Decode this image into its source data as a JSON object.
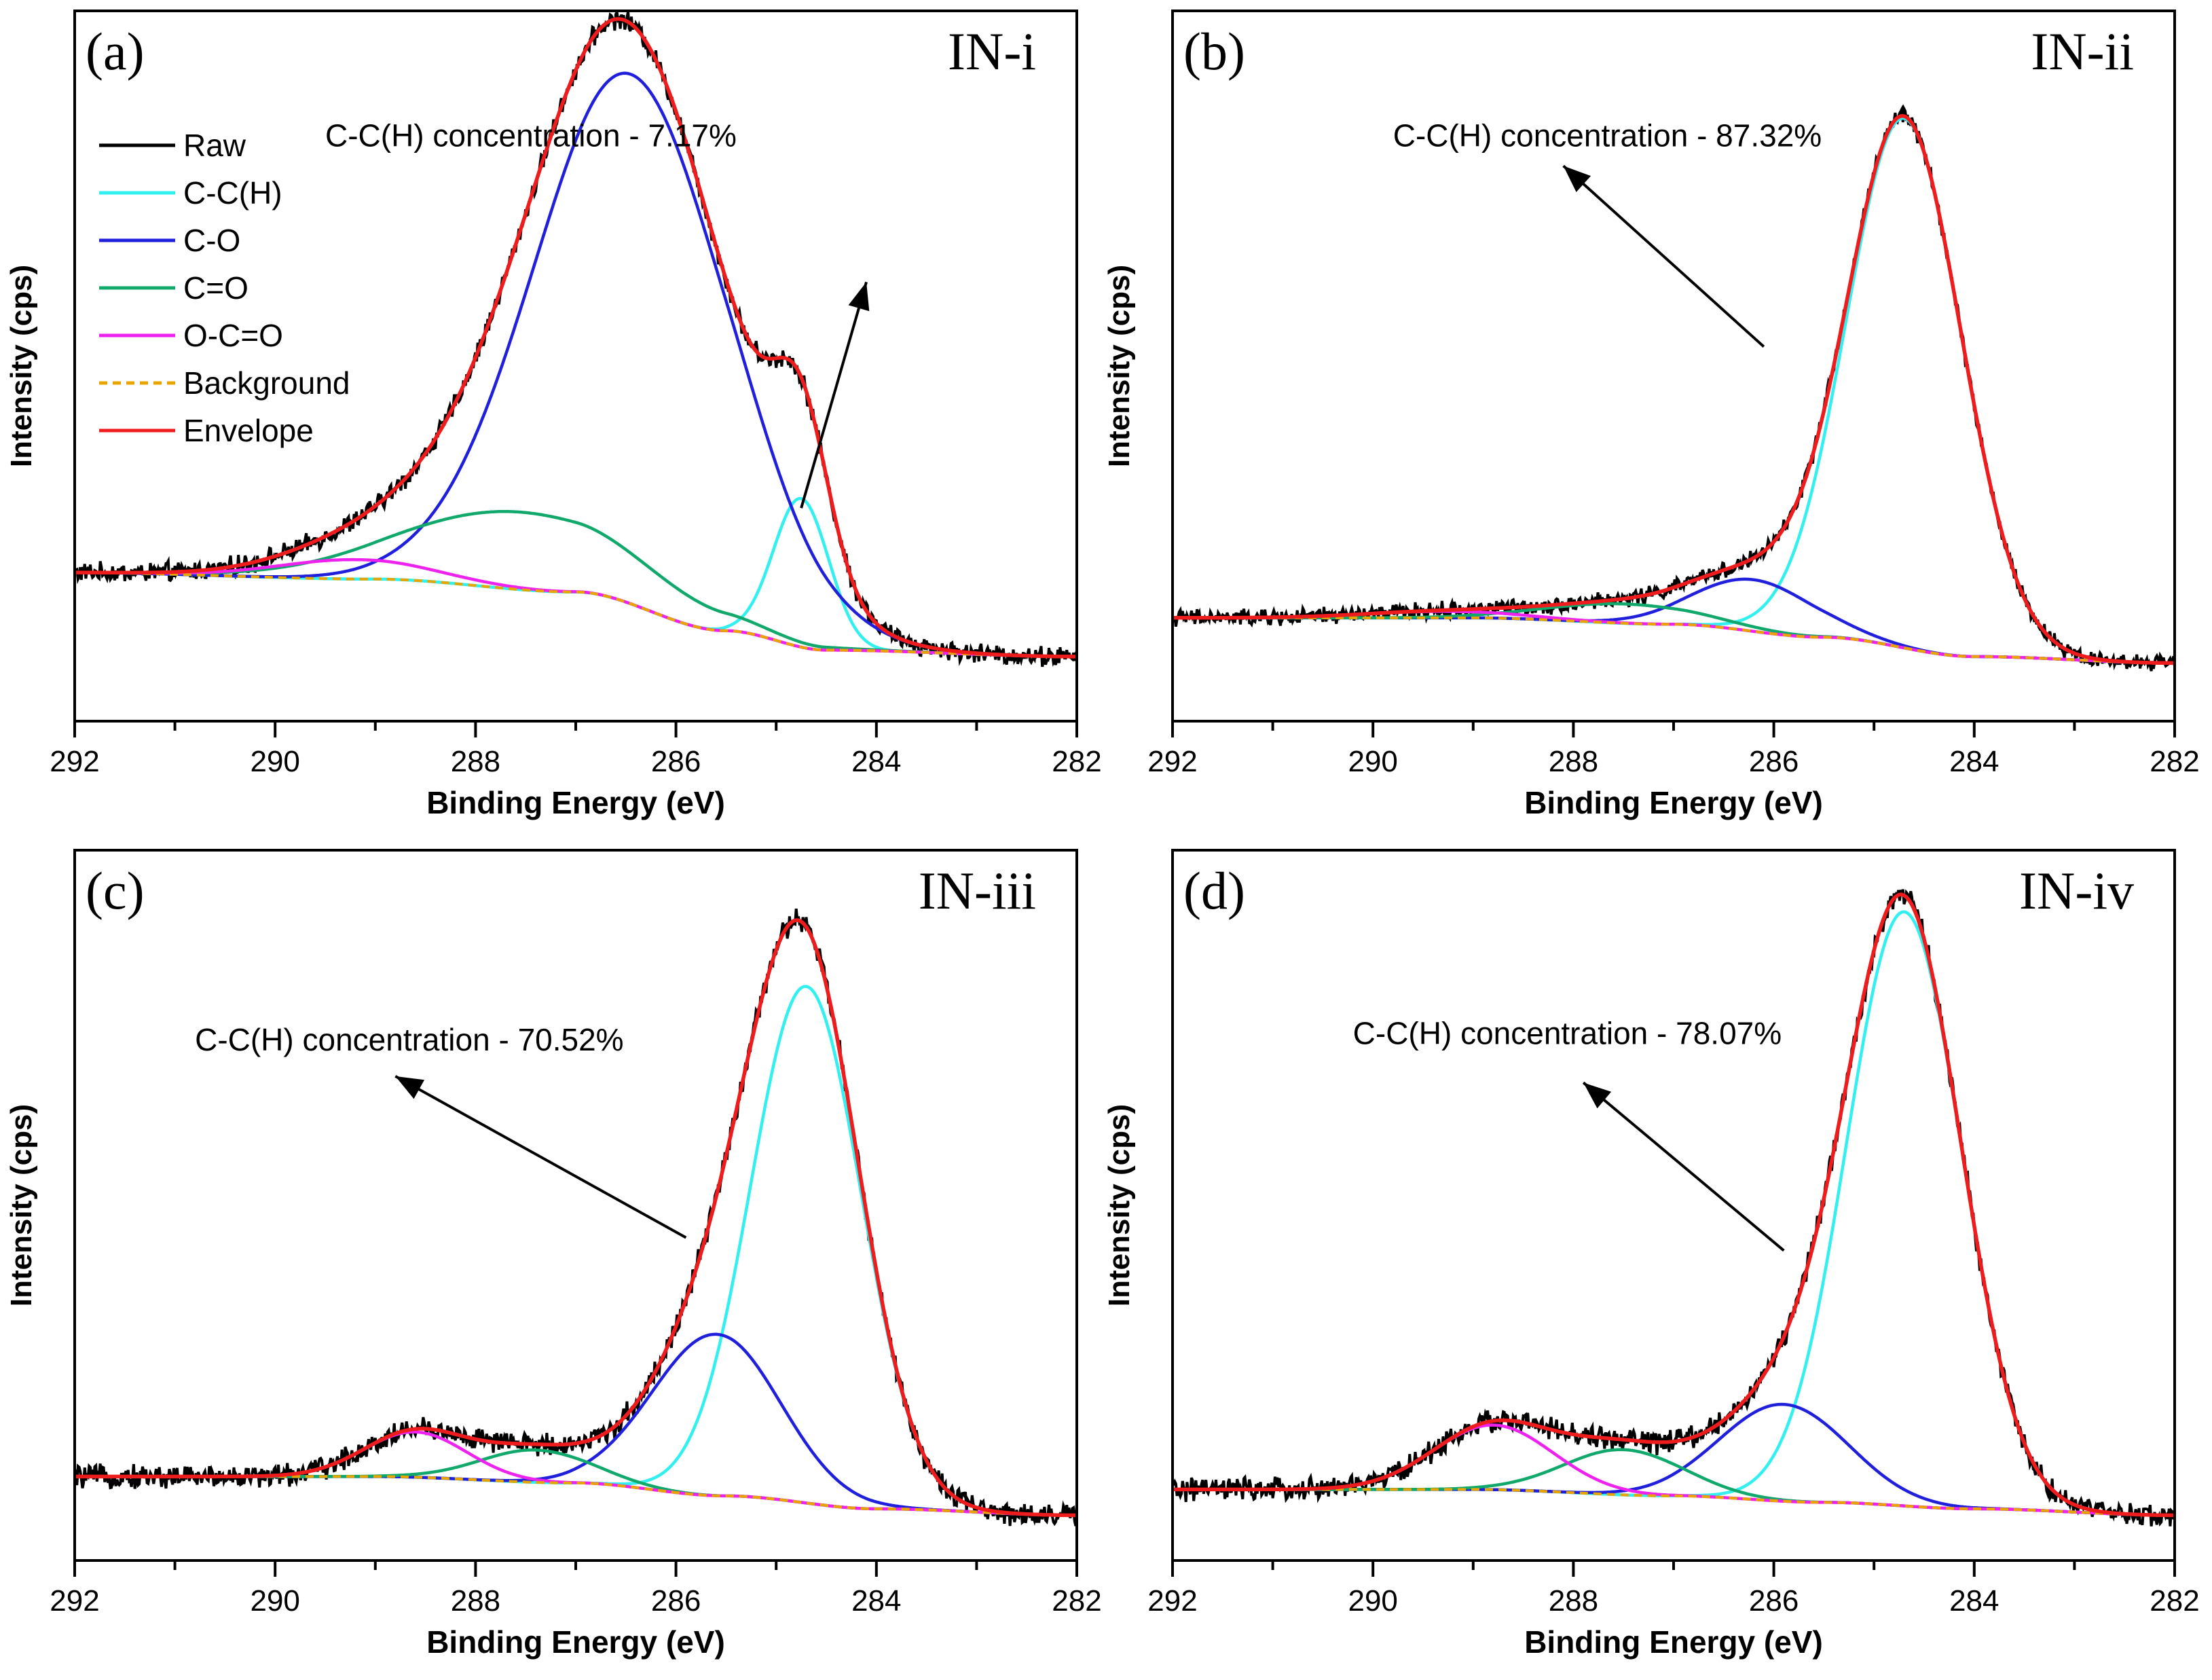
{
  "figure": {
    "layout": "2x2 grid"
  },
  "legend": {
    "items": [
      {
        "key": "raw",
        "label": "Raw",
        "color": "#000000",
        "dashed": false
      },
      {
        "key": "cc",
        "label": "C-C(H)",
        "color": "#33f0f0",
        "dashed": false
      },
      {
        "key": "co",
        "label": "C-O",
        "color": "#1f1fdc",
        "dashed": false
      },
      {
        "key": "c_eq_o",
        "label": "C=O",
        "color": "#11a86c",
        "dashed": false
      },
      {
        "key": "oco",
        "label": "O-C=O",
        "color": "#ee22ee",
        "dashed": false
      },
      {
        "key": "bg",
        "label": "Background",
        "color": "#e8a500",
        "dashed": true
      },
      {
        "key": "env",
        "label": "Envelope",
        "color": "#ee1c1c",
        "dashed": false
      }
    ]
  },
  "chart_data": [
    {
      "type": "line",
      "panel": "(a)",
      "sample": "IN-i",
      "xlabel": "Binding Energy (eV)",
      "ylabel": "Intensity (cps)",
      "xlim": [
        292,
        282
      ],
      "ylim": [
        0,
        1.1
      ],
      "xticks": [
        292,
        290,
        288,
        286,
        284,
        282
      ],
      "xtick_labels": [
        "292",
        "290",
        "288",
        "286",
        "284",
        "282"
      ],
      "annotation": {
        "text": "C-C(H) concentration - 7.17%",
        "arrow_from": [
          284.75,
          0.33
        ],
        "arrow_to": [
          284.1,
          0.68
        ]
      },
      "background": {
        "points": [
          [
            292,
            0.23
          ],
          [
            289,
            0.22
          ],
          [
            287,
            0.2
          ],
          [
            285.5,
            0.14
          ],
          [
            284.5,
            0.11
          ],
          [
            282,
            0.1
          ]
        ]
      },
      "peaks": [
        {
          "key": "cc",
          "center": 284.75,
          "height": 0.23,
          "fwhm": 0.65
        },
        {
          "key": "co",
          "center": 286.45,
          "height": 0.82,
          "fwhm": 2.3
        },
        {
          "key": "c_eq_o",
          "center": 287.55,
          "height": 0.12,
          "fwhm": 2.8
        },
        {
          "key": "oco",
          "center": 289.2,
          "height": 0.03,
          "fwhm": 1.8
        }
      ],
      "noise_amplitude": 0.012
    },
    {
      "type": "line",
      "panel": "(b)",
      "sample": "IN-ii",
      "xlabel": "Binding Energy (eV)",
      "ylabel": "Intensity (cps)",
      "xlim": [
        292,
        282
      ],
      "ylim": [
        0,
        1.1
      ],
      "xticks": [
        292,
        290,
        288,
        286,
        284,
        282
      ],
      "xtick_labels": [
        "292",
        "290",
        "288",
        "286",
        "284",
        "282"
      ],
      "annotation": {
        "text": "C-C(H) concentration - 87.32%",
        "arrow_from": [
          286.1,
          0.58
        ],
        "arrow_to": [
          288.1,
          0.86
        ]
      },
      "background": {
        "points": [
          [
            292,
            0.16
          ],
          [
            289,
            0.16
          ],
          [
            287,
            0.15
          ],
          [
            285.5,
            0.13
          ],
          [
            284,
            0.1
          ],
          [
            282,
            0.09
          ]
        ]
      },
      "peaks": [
        {
          "key": "cc",
          "center": 284.7,
          "height": 0.82,
          "fwhm": 1.35
        },
        {
          "key": "co",
          "center": 286.2,
          "height": 0.08,
          "fwhm": 1.4
        },
        {
          "key": "c_eq_o",
          "center": 287.5,
          "height": 0.03,
          "fwhm": 1.8
        },
        {
          "key": "oco",
          "center": 289.3,
          "height": 0.01,
          "fwhm": 1.8
        }
      ],
      "noise_amplitude": 0.01
    },
    {
      "type": "line",
      "panel": "(c)",
      "sample": "IN-iii",
      "xlabel": "Binding Energy (eV)",
      "ylabel": "Intensity (cps)",
      "xlim": [
        292,
        282
      ],
      "ylim": [
        0,
        1.1
      ],
      "xticks": [
        292,
        290,
        288,
        286,
        284,
        282
      ],
      "xtick_labels": [
        "292",
        "290",
        "288",
        "286",
        "284",
        "282"
      ],
      "annotation": {
        "text": "C-C(H) concentration - 70.52%",
        "arrow_from": [
          285.9,
          0.5
        ],
        "arrow_to": [
          288.8,
          0.75
        ]
      },
      "background": {
        "points": [
          [
            292,
            0.13
          ],
          [
            289,
            0.13
          ],
          [
            287,
            0.12
          ],
          [
            285.5,
            0.1
          ],
          [
            284,
            0.08
          ],
          [
            282,
            0.07
          ]
        ]
      },
      "peaks": [
        {
          "key": "cc",
          "center": 284.7,
          "height": 0.8,
          "fwhm": 1.3
        },
        {
          "key": "co",
          "center": 285.6,
          "height": 0.25,
          "fwhm": 1.5
        },
        {
          "key": "c_eq_o",
          "center": 287.4,
          "height": 0.05,
          "fwhm": 1.3
        },
        {
          "key": "oco",
          "center": 288.6,
          "height": 0.07,
          "fwhm": 1.2
        }
      ],
      "noise_amplitude": 0.014
    },
    {
      "type": "line",
      "panel": "(d)",
      "sample": "IN-iv",
      "xlabel": "Binding Energy (eV)",
      "ylabel": "Intensity (cps)",
      "xlim": [
        292,
        282
      ],
      "ylim": [
        0,
        1.1
      ],
      "xticks": [
        292,
        290,
        288,
        286,
        284,
        282
      ],
      "xtick_labels": [
        "292",
        "290",
        "288",
        "286",
        "284",
        "282"
      ],
      "annotation": {
        "text": "C-C(H) concentration - 78.07%",
        "arrow_from": [
          285.9,
          0.48
        ],
        "arrow_to": [
          287.9,
          0.74
        ]
      },
      "background": {
        "points": [
          [
            292,
            0.11
          ],
          [
            289,
            0.11
          ],
          [
            287,
            0.1
          ],
          [
            285.5,
            0.09
          ],
          [
            284,
            0.08
          ],
          [
            282,
            0.07
          ]
        ]
      },
      "peaks": [
        {
          "key": "cc",
          "center": 284.7,
          "height": 0.92,
          "fwhm": 1.35
        },
        {
          "key": "co",
          "center": 285.9,
          "height": 0.15,
          "fwhm": 1.5
        },
        {
          "key": "c_eq_o",
          "center": 287.5,
          "height": 0.07,
          "fwhm": 1.4
        },
        {
          "key": "oco",
          "center": 288.8,
          "height": 0.1,
          "fwhm": 1.4
        }
      ],
      "noise_amplitude": 0.014
    }
  ]
}
